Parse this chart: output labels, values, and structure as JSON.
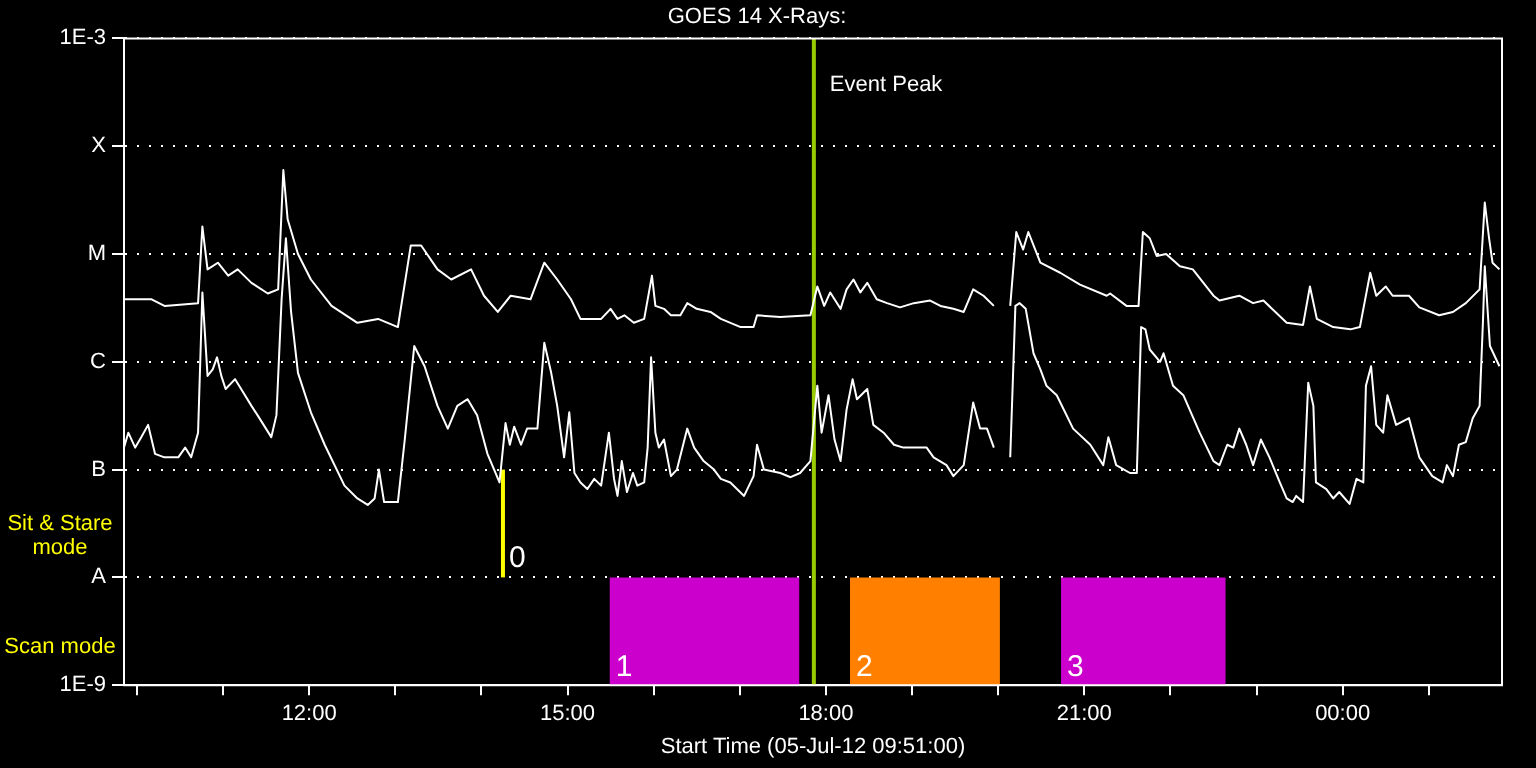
{
  "chart_data": {
    "type": "line",
    "title": "GOES 14 X-Rays:",
    "xlabel": "Start Time (05-Jul-12 09:51:00)",
    "xlim": [
      9.85,
      25.85
    ],
    "xticks": [
      {
        "value": 10,
        "label": null
      },
      {
        "value": 11,
        "label": null
      },
      {
        "value": 12,
        "label": "12:00"
      },
      {
        "value": 13,
        "label": null
      },
      {
        "value": 14,
        "label": null
      },
      {
        "value": 15,
        "label": "15:00"
      },
      {
        "value": 16,
        "label": null
      },
      {
        "value": 17,
        "label": null
      },
      {
        "value": 18,
        "label": "18:00"
      },
      {
        "value": 19,
        "label": null
      },
      {
        "value": 20,
        "label": null
      },
      {
        "value": 21,
        "label": "21:00"
      },
      {
        "value": 22,
        "label": null
      },
      {
        "value": 23,
        "label": null
      },
      {
        "value": 24,
        "label": "00:00"
      },
      {
        "value": 25,
        "label": null
      }
    ],
    "ylim": [
      1e-09,
      0.001
    ],
    "yticks": [
      {
        "value": 1e-09,
        "label": "1E-9"
      },
      {
        "value": 1e-08,
        "label": "A"
      },
      {
        "value": 1e-07,
        "label": "B"
      },
      {
        "value": 1e-06,
        "label": "C"
      },
      {
        "value": 1e-05,
        "label": "M"
      },
      {
        "value": 0.0001,
        "label": "X"
      },
      {
        "value": 0.001,
        "label": "1E-3"
      }
    ],
    "log": true,
    "grid": "y",
    "marker": "none",
    "line_style": "solid",
    "series": [
      {
        "color": "#ffffff",
        "x": [
          9.85,
          10.17,
          10.32,
          10.71,
          10.76,
          10.82,
          10.94,
          11.06,
          11.17,
          11.33,
          11.52,
          11.64,
          11.7,
          11.75,
          11.87,
          12.02,
          12.26,
          12.56,
          12.8,
          13.03,
          13.18,
          13.3,
          13.49,
          13.65,
          13.88,
          14.03,
          14.19,
          14.34,
          14.57,
          14.73,
          14.88,
          15.04,
          15.15,
          15.39,
          15.5,
          15.58,
          15.66,
          15.77,
          15.89,
          15.98,
          16.02,
          16.12,
          16.2,
          16.31,
          16.39,
          16.5,
          16.66,
          16.78,
          17.01,
          17.16,
          17.2,
          17.47,
          17.82,
          17.9,
          17.98,
          18.05,
          18.17,
          18.24,
          18.32,
          18.4,
          18.48,
          18.59,
          18.71,
          18.86,
          19.02,
          19.21,
          19.33,
          19.48,
          19.6,
          19.71,
          19.83,
          19.95,
          20.05,
          20.14,
          20.21,
          20.29,
          20.35,
          20.49,
          20.72,
          20.95,
          21.26,
          21.3,
          21.49,
          21.63,
          21.68,
          21.76,
          21.84,
          21.95,
          22.11,
          22.26,
          22.5,
          22.57,
          22.8,
          22.96,
          23.08,
          23.35,
          23.54,
          23.62,
          23.7,
          23.89,
          24.09,
          24.2,
          24.32,
          24.39,
          24.5,
          24.58,
          24.77,
          24.89,
          25.12,
          25.28,
          25.43,
          25.59,
          25.65,
          25.7,
          25.74,
          25.82
        ],
        "values": [
          3.8e-06,
          3.8e-06,
          3.3e-06,
          3.5e-06,
          1.8e-05,
          7.2e-06,
          8.3e-06,
          6.3e-06,
          7.2e-06,
          5.4e-06,
          4.3e-06,
          4.7e-06,
          6e-05,
          2.1e-05,
          1e-05,
          5.8e-06,
          3.3e-06,
          2.3e-06,
          2.5e-06,
          2.1e-06,
          1.2e-05,
          1.2e-05,
          7.2e-06,
          5.8e-06,
          7.2e-06,
          4.1e-06,
          2.9e-06,
          4.1e-06,
          3.8e-06,
          8.3e-06,
          5.8e-06,
          3.8e-06,
          2.5e-06,
          2.5e-06,
          3.1e-06,
          2.5e-06,
          2.7e-06,
          2.3e-06,
          2.5e-06,
          6.3e-06,
          3.3e-06,
          3.1e-06,
          2.7e-06,
          2.7e-06,
          3.5e-06,
          3.1e-06,
          2.9e-06,
          2.5e-06,
          2.1e-06,
          2.1e-06,
          2.7e-06,
          2.6e-06,
          2.7e-06,
          5e-06,
          3.3e-06,
          4.4e-06,
          3.1e-06,
          4.7e-06,
          5.8e-06,
          4.4e-06,
          5.4e-06,
          3.8e-06,
          3.5e-06,
          3.2e-06,
          3.5e-06,
          3.7e-06,
          3.3e-06,
          3.1e-06,
          2.9e-06,
          4.7e-06,
          4.1e-06,
          3.3e-06,
          null,
          3.3e-06,
          1.6e-05,
          1.1e-05,
          1.6e-05,
          8.3e-06,
          6.7e-06,
          5.2e-06,
          4.1e-06,
          4.3e-06,
          3.3e-06,
          3.3e-06,
          1.6e-05,
          1.4e-05,
          9.6e-06,
          1e-05,
          7.7e-06,
          7.2e-06,
          4.1e-06,
          3.7e-06,
          4.1e-06,
          3.5e-06,
          3.7e-06,
          2.3e-06,
          2.2e-06,
          5e-06,
          2.5e-06,
          2.1e-06,
          2e-06,
          2.1e-06,
          6.7e-06,
          4.1e-06,
          5e-06,
          4.1e-06,
          4.1e-06,
          3.2e-06,
          2.7e-06,
          2.9e-06,
          3.5e-06,
          4.7e-06,
          3e-05,
          1.4e-05,
          8.3e-06,
          7.2e-06
        ]
      },
      {
        "color": "#ffffff",
        "x": [
          9.85,
          9.9,
          9.98,
          10.05,
          10.13,
          10.21,
          10.32,
          10.48,
          10.56,
          10.63,
          10.71,
          10.76,
          10.82,
          10.88,
          10.93,
          10.98,
          11.03,
          11.14,
          11.21,
          11.33,
          11.4,
          11.56,
          11.62,
          11.68,
          11.73,
          11.79,
          11.87,
          12.02,
          12.18,
          12.41,
          12.56,
          12.68,
          12.76,
          12.81,
          12.87,
          13.03,
          13.11,
          13.22,
          13.34,
          13.49,
          13.61,
          13.72,
          13.84,
          13.95,
          14.07,
          14.21,
          14.28,
          14.33,
          14.38,
          14.46,
          14.53,
          14.65,
          14.73,
          14.81,
          14.88,
          14.96,
          15.02,
          15.08,
          15.15,
          15.23,
          15.31,
          15.39,
          15.48,
          15.54,
          15.58,
          15.63,
          15.69,
          15.76,
          15.81,
          15.89,
          15.93,
          15.97,
          16.02,
          16.06,
          16.12,
          16.2,
          16.27,
          16.39,
          16.47,
          16.58,
          16.7,
          16.78,
          16.89,
          17.05,
          17.16,
          17.2,
          17.28,
          17.47,
          17.59,
          17.7,
          17.82,
          17.9,
          17.95,
          18.03,
          18.1,
          18.17,
          18.24,
          18.31,
          18.36,
          18.48,
          18.55,
          18.67,
          18.79,
          18.9,
          19.02,
          19.17,
          19.25,
          19.4,
          19.48,
          19.6,
          19.71,
          19.79,
          19.87,
          19.95,
          20.05,
          20.14,
          20.2,
          20.25,
          20.32,
          20.41,
          20.49,
          20.56,
          20.68,
          20.87,
          21.07,
          21.22,
          21.28,
          21.37,
          21.53,
          21.61,
          21.66,
          21.71,
          21.76,
          21.88,
          21.92,
          22.03,
          22.15,
          22.34,
          22.5,
          22.57,
          22.66,
          22.73,
          22.8,
          22.88,
          22.96,
          23.05,
          23.15,
          23.27,
          23.35,
          23.42,
          23.46,
          23.54,
          23.6,
          23.66,
          23.69,
          23.81,
          23.89,
          23.96,
          24.08,
          24.16,
          24.24,
          24.27,
          24.33,
          24.39,
          24.47,
          24.52,
          24.62,
          24.77,
          24.89,
          25.04,
          25.16,
          25.21,
          25.28,
          25.35,
          25.43,
          25.51,
          25.59,
          25.63,
          25.65,
          25.71,
          25.82
        ],
        "values": [
          1.6e-07,
          2.2e-07,
          1.6e-07,
          2e-07,
          2.6e-07,
          1.4e-07,
          1.3e-07,
          1.3e-07,
          1.6e-07,
          1.3e-07,
          2.2e-07,
          4.4e-06,
          7.4e-07,
          8.5e-07,
          1.1e-06,
          7.4e-07,
          5.6e-07,
          6.9e-07,
          5.6e-07,
          3.9e-07,
          3.2e-07,
          2e-07,
          3.2e-07,
          3.8e-06,
          1.4e-05,
          2.9e-06,
          7.9e-07,
          3.4e-07,
          1.7e-07,
          7.1e-08,
          5.4e-08,
          4.7e-08,
          5.4e-08,
          1e-07,
          5e-08,
          5e-08,
          1.9e-07,
          1.4e-06,
          9.1e-07,
          3.9e-07,
          2.4e-07,
          3.9e-07,
          4.5e-07,
          3.2e-07,
          1.4e-07,
          7.6e-08,
          2.7e-07,
          1.7e-07,
          2.5e-07,
          1.7e-07,
          2.4e-07,
          2.4e-07,
          1.5e-06,
          7.9e-07,
          3.9e-07,
          1.3e-07,
          3.4e-07,
          9.3e-08,
          7.6e-08,
          6.6e-08,
          8.2e-08,
          7.1e-08,
          2.2e-07,
          8.2e-08,
          5.7e-08,
          1.2e-07,
          6.2e-08,
          9.3e-08,
          7.1e-08,
          7.6e-08,
          1.6e-07,
          1.1e-06,
          2.2e-07,
          1.6e-07,
          1.9e-07,
          8.7e-08,
          1e-07,
          2.4e-07,
          1.6e-07,
          1.2e-07,
          1e-07,
          8.2e-08,
          7.6e-08,
          5.7e-08,
          8.7e-08,
          1.7e-07,
          1e-07,
          9.3e-08,
          8.5e-08,
          9.3e-08,
          1.2e-07,
          6e-07,
          2.2e-07,
          4.9e-07,
          1.9e-07,
          1.2e-07,
          3.6e-07,
          6.9e-07,
          4.5e-07,
          5.6e-07,
          2.6e-07,
          2.2e-07,
          1.7e-07,
          1.6e-07,
          1.6e-07,
          1.6e-07,
          1.3e-07,
          1.1e-07,
          8.7e-08,
          1.1e-07,
          4.2e-07,
          2.4e-07,
          2.4e-07,
          1.6e-07,
          null,
          1.3e-07,
          3.3e-06,
          3.5e-06,
          3.1e-06,
          1.2e-06,
          8.5e-07,
          6e-07,
          4.9e-07,
          2.4e-07,
          1.7e-07,
          1.1e-07,
          2e-07,
          1.1e-07,
          9.3e-08,
          9.3e-08,
          2.1e-06,
          2e-06,
          1.3e-06,
          1e-06,
          1.2e-06,
          6e-07,
          4.9e-07,
          2.2e-07,
          1.2e-07,
          1.1e-07,
          1.7e-07,
          1.6e-07,
          2.4e-07,
          1.7e-07,
          1.1e-07,
          1.9e-07,
          1.3e-07,
          7.6e-08,
          5.4e-08,
          5e-08,
          5.7e-08,
          5e-08,
          6.4e-07,
          3.9e-07,
          7.6e-08,
          6.6e-08,
          5.4e-08,
          6.2e-08,
          4.8e-08,
          8.2e-08,
          7.6e-08,
          6e-07,
          9.1e-07,
          2.6e-07,
          2.2e-07,
          4.9e-07,
          2.6e-07,
          3e-07,
          1.3e-07,
          8.7e-08,
          7.6e-08,
          1.1e-07,
          8.7e-08,
          1.7e-07,
          1.8e-07,
          3e-07,
          3.9e-07,
          2.5e-06,
          7.7e-06,
          1.4e-06,
          9.1e-07
        ]
      }
    ],
    "bands": [
      {
        "axis": "x",
        "from": 15.49,
        "to": 17.69,
        "label": "1",
        "color": "#cc00cc"
      },
      {
        "axis": "x",
        "from": 18.28,
        "to": 20.02,
        "label": "2",
        "color": "#ff8000"
      },
      {
        "axis": "x",
        "from": 20.73,
        "to": 22.64,
        "label": "3",
        "color": "#cc00cc"
      }
    ],
    "ref_lines": [
      {
        "axis": "x",
        "value": 14.25,
        "color": "#ffff00"
      },
      {
        "axis": "x",
        "value": 17.86,
        "label": "Event Peak",
        "color": "#99cc00"
      }
    ],
    "annotations": [
      "Sit & Stare mode",
      "Scan mode",
      "0"
    ]
  }
}
